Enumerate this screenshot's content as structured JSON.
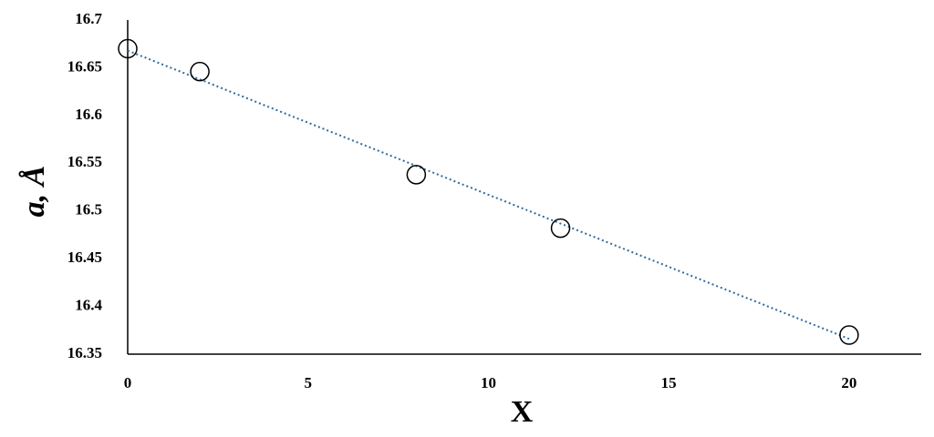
{
  "chart_data": {
    "type": "scatter",
    "x_label": "X",
    "y_label": "a, Å",
    "x": [
      0,
      2,
      8,
      12,
      20
    ],
    "series": [
      {
        "color": "#000000",
        "values": [
          16.67,
          16.646,
          16.538,
          16.482,
          16.37
        ]
      }
    ],
    "trendline": {
      "color": "#2e6a9e",
      "x": [
        0,
        20
      ],
      "values": [
        16.668,
        16.366
      ]
    },
    "xlim": [
      0,
      22
    ],
    "xticks": [
      0,
      5,
      10,
      15,
      20
    ],
    "ylim": [
      16.35,
      16.7
    ],
    "yticks": [
      16.35,
      16.4,
      16.45,
      16.5,
      16.55,
      16.6,
      16.65,
      16.7
    ],
    "grid": false
  }
}
